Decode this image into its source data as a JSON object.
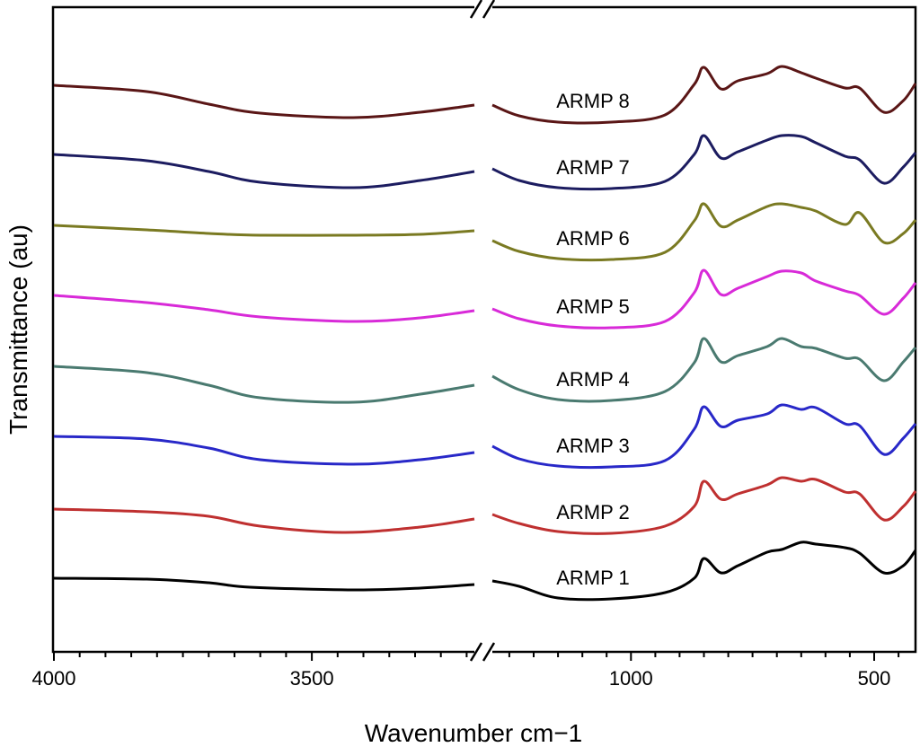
{
  "chart_data": {
    "type": "line",
    "title": "",
    "xlabel": "Wavenumber cm−1",
    "ylabel": "Transmittance (au)",
    "x_axis_break": true,
    "x_segments": [
      {
        "name": "high",
        "range": [
          4000,
          3185
        ],
        "ticks": [
          4000,
          3500
        ]
      },
      {
        "name": "low",
        "range": [
          1285,
          415
        ],
        "ticks": [
          1000,
          500
        ]
      }
    ],
    "grid": false,
    "legend": "inline-labels",
    "series": [
      {
        "name": "ARMP 1",
        "color": "#000000",
        "high": [
          [
            4000,
            82
          ],
          [
            3820,
            81
          ],
          [
            3700,
            77
          ],
          [
            3620,
            72
          ],
          [
            3420,
            69
          ],
          [
            3290,
            71
          ],
          [
            3185,
            75
          ]
        ],
        "low": [
          [
            1285,
            79
          ],
          [
            1230,
            73
          ],
          [
            1150,
            60
          ],
          [
            1040,
            59
          ],
          [
            930,
            66
          ],
          [
            870,
            82
          ],
          [
            850,
            104
          ],
          [
            815,
            88
          ],
          [
            780,
            96
          ],
          [
            720,
            111
          ],
          [
            690,
            114
          ],
          [
            650,
            122
          ],
          [
            620,
            120
          ],
          [
            560,
            116
          ],
          [
            530,
            110
          ],
          [
            480,
            88
          ],
          [
            440,
            96
          ],
          [
            415,
            113
          ]
        ]
      },
      {
        "name": "ARMP 2",
        "color": "#bf3030",
        "high": [
          [
            4000,
            159
          ],
          [
            3820,
            156
          ],
          [
            3700,
            151
          ],
          [
            3600,
            140
          ],
          [
            3440,
            133
          ],
          [
            3290,
            139
          ],
          [
            3185,
            148
          ]
        ],
        "low": [
          [
            1285,
            153
          ],
          [
            1230,
            143
          ],
          [
            1150,
            134
          ],
          [
            1040,
            132
          ],
          [
            930,
            140
          ],
          [
            870,
            162
          ],
          [
            850,
            190
          ],
          [
            815,
            170
          ],
          [
            780,
            176
          ],
          [
            720,
            186
          ],
          [
            690,
            194
          ],
          [
            650,
            190
          ],
          [
            620,
            192
          ],
          [
            560,
            178
          ],
          [
            530,
            176
          ],
          [
            480,
            147
          ],
          [
            440,
            162
          ],
          [
            415,
            179
          ]
        ]
      },
      {
        "name": "ARMP 3",
        "color": "#2828c8",
        "high": [
          [
            4000,
            240
          ],
          [
            3820,
            237
          ],
          [
            3700,
            227
          ],
          [
            3600,
            214
          ],
          [
            3420,
            209
          ],
          [
            3290,
            214
          ],
          [
            3185,
            222
          ]
        ],
        "low": [
          [
            1285,
            229
          ],
          [
            1230,
            215
          ],
          [
            1150,
            207
          ],
          [
            1040,
            206
          ],
          [
            930,
            213
          ],
          [
            870,
            248
          ],
          [
            850,
            273
          ],
          [
            815,
            251
          ],
          [
            780,
            258
          ],
          [
            720,
            265
          ],
          [
            690,
            275
          ],
          [
            650,
            270
          ],
          [
            620,
            272
          ],
          [
            560,
            254
          ],
          [
            530,
            252
          ],
          [
            480,
            220
          ],
          [
            440,
            238
          ],
          [
            415,
            254
          ]
        ]
      },
      {
        "name": "ARMP 4",
        "color": "#4a7a70",
        "high": [
          [
            4000,
            318
          ],
          [
            3820,
            311
          ],
          [
            3700,
            297
          ],
          [
            3600,
            283
          ],
          [
            3420,
            278
          ],
          [
            3290,
            287
          ],
          [
            3185,
            297
          ]
        ],
        "low": [
          [
            1285,
            307
          ],
          [
            1230,
            292
          ],
          [
            1150,
            281
          ],
          [
            1040,
            280
          ],
          [
            930,
            290
          ],
          [
            870,
            322
          ],
          [
            850,
            349
          ],
          [
            815,
            323
          ],
          [
            780,
            330
          ],
          [
            720,
            340
          ],
          [
            690,
            349
          ],
          [
            650,
            340
          ],
          [
            620,
            338
          ],
          [
            560,
            327
          ],
          [
            530,
            326
          ],
          [
            480,
            302
          ],
          [
            440,
            323
          ],
          [
            415,
            339
          ]
        ]
      },
      {
        "name": "ARMP 5",
        "color": "#d82ad8",
        "high": [
          [
            4000,
            397
          ],
          [
            3820,
            389
          ],
          [
            3700,
            381
          ],
          [
            3600,
            373
          ],
          [
            3420,
            368
          ],
          [
            3290,
            372
          ],
          [
            3185,
            380
          ]
        ],
        "low": [
          [
            1285,
            382
          ],
          [
            1230,
            371
          ],
          [
            1150,
            363
          ],
          [
            1040,
            361
          ],
          [
            930,
            368
          ],
          [
            870,
            400
          ],
          [
            850,
            425
          ],
          [
            815,
            398
          ],
          [
            780,
            405
          ],
          [
            720,
            418
          ],
          [
            690,
            424
          ],
          [
            650,
            422
          ],
          [
            620,
            413
          ],
          [
            560,
            402
          ],
          [
            530,
            397
          ],
          [
            480,
            376
          ],
          [
            440,
            394
          ],
          [
            415,
            411
          ]
        ]
      },
      {
        "name": "ARMP 6",
        "color": "#7a7a22",
        "high": [
          [
            4000,
            475
          ],
          [
            3820,
            470
          ],
          [
            3700,
            466
          ],
          [
            3600,
            464
          ],
          [
            3420,
            464
          ],
          [
            3290,
            465
          ],
          [
            3185,
            469
          ]
        ],
        "low": [
          [
            1285,
            458
          ],
          [
            1230,
            446
          ],
          [
            1150,
            438
          ],
          [
            1040,
            437
          ],
          [
            930,
            445
          ],
          [
            870,
            480
          ],
          [
            850,
            499
          ],
          [
            815,
            474
          ],
          [
            780,
            481
          ],
          [
            720,
            496
          ],
          [
            690,
            499
          ],
          [
            650,
            495
          ],
          [
            620,
            491
          ],
          [
            560,
            476
          ],
          [
            530,
            489
          ],
          [
            480,
            456
          ],
          [
            440,
            466
          ],
          [
            415,
            481
          ]
        ]
      },
      {
        "name": "ARMP 7",
        "color": "#1c1c60",
        "high": [
          [
            4000,
            554
          ],
          [
            3820,
            547
          ],
          [
            3700,
            535
          ],
          [
            3600,
            523
          ],
          [
            3420,
            517
          ],
          [
            3290,
            525
          ],
          [
            3185,
            535
          ]
        ],
        "low": [
          [
            1285,
            538
          ],
          [
            1230,
            525
          ],
          [
            1150,
            517
          ],
          [
            1040,
            516
          ],
          [
            930,
            524
          ],
          [
            870,
            554
          ],
          [
            850,
            575
          ],
          [
            815,
            550
          ],
          [
            780,
            557
          ],
          [
            720,
            570
          ],
          [
            690,
            575
          ],
          [
            650,
            574
          ],
          [
            620,
            567
          ],
          [
            560,
            552
          ],
          [
            530,
            548
          ],
          [
            480,
            522
          ],
          [
            440,
            540
          ],
          [
            415,
            556
          ]
        ]
      },
      {
        "name": "ARMP 8",
        "color": "#5a1616",
        "high": [
          [
            4000,
            631
          ],
          [
            3820,
            624
          ],
          [
            3700,
            610
          ],
          [
            3600,
            600
          ],
          [
            3420,
            595
          ],
          [
            3290,
            601
          ],
          [
            3185,
            609
          ]
        ],
        "low": [
          [
            1285,
            609
          ],
          [
            1230,
            597
          ],
          [
            1150,
            590
          ],
          [
            1040,
            590
          ],
          [
            930,
            598
          ],
          [
            870,
            632
          ],
          [
            850,
            651
          ],
          [
            815,
            627
          ],
          [
            780,
            636
          ],
          [
            720,
            644
          ],
          [
            690,
            652
          ],
          [
            650,
            645
          ],
          [
            620,
            639
          ],
          [
            560,
            628
          ],
          [
            530,
            628
          ],
          [
            480,
            601
          ],
          [
            440,
            614
          ],
          [
            415,
            633
          ]
        ]
      }
    ]
  }
}
